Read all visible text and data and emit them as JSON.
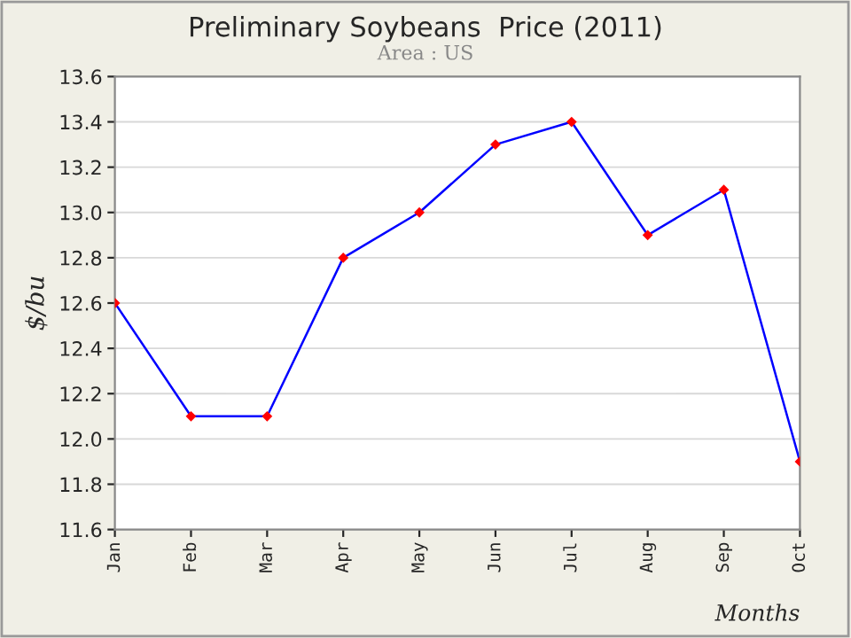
{
  "chart_data": {
    "type": "line",
    "title": "Preliminary Soybeans  Price (2011)",
    "subtitle": "Area : US",
    "xlabel": "Months",
    "ylabel": "$/bu",
    "categories": [
      "Jan",
      "Feb",
      "Mar",
      "Apr",
      "May",
      "Jun",
      "Jul",
      "Aug",
      "Sep",
      "Oct"
    ],
    "series": [
      {
        "color": "#0000ff",
        "colors": [
          "#ff0000",
          "#ff0000",
          "#ff0000",
          "#ff0000",
          "#ff0000",
          "#ff0000",
          "#ff0000",
          "#ff0000",
          "#ff0000",
          "#ff0000"
        ],
        "values": [
          12.6,
          12.1,
          12.1,
          12.8,
          13.0,
          13.3,
          13.4,
          12.9,
          13.1,
          11.9
        ]
      }
    ],
    "ylim": [
      11.6,
      13.6
    ],
    "yticks": [
      11.6,
      11.8,
      {
        "value": 12,
        "label": "12.0"
      },
      12.2,
      12.4,
      12.6,
      12.8,
      {
        "value": 13,
        "label": "13.0"
      },
      13.2,
      13.4,
      13.6
    ],
    "grid": "y",
    "marker": "diamond",
    "line_style": "solid",
    "legend": false
  }
}
